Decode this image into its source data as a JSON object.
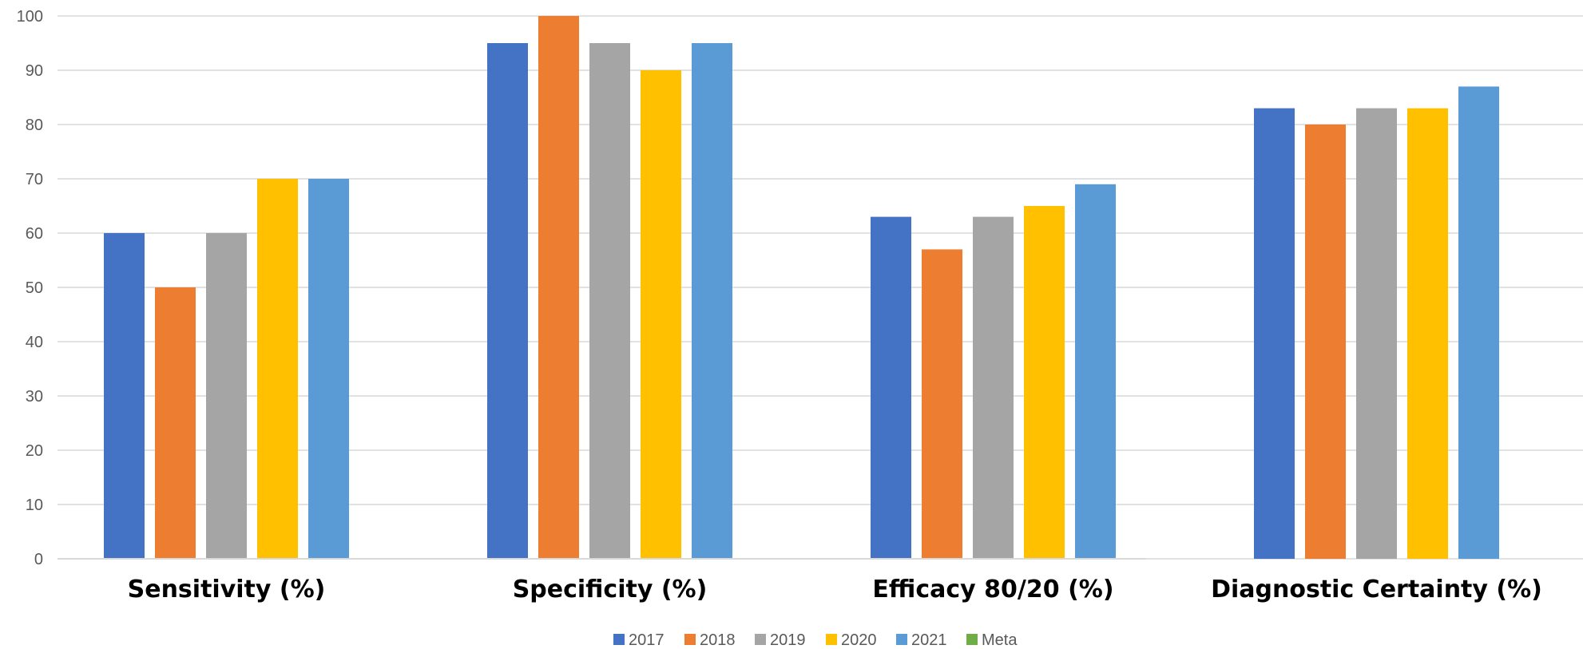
{
  "chart_data": {
    "type": "bar",
    "title": "",
    "xlabel": "",
    "ylabel": "",
    "categories": [
      "Sensitivity (%)",
      "Specificity (%)",
      "Efficacy 80/20 (%)",
      "Diagnostic Certainty (%)"
    ],
    "ylim": [
      0,
      100
    ],
    "yticks": [
      0,
      10,
      20,
      30,
      40,
      50,
      60,
      70,
      80,
      90,
      100
    ],
    "grid": true,
    "legend_position": "bottom",
    "series": [
      {
        "name": "2017",
        "color": "#4472C4",
        "values": [
          60,
          95,
          63,
          83
        ]
      },
      {
        "name": "2018",
        "color": "#ED7D31",
        "values": [
          50,
          100,
          57,
          80
        ]
      },
      {
        "name": "2019",
        "color": "#A5A5A5",
        "values": [
          60,
          95,
          63,
          83
        ]
      },
      {
        "name": "2020",
        "color": "#FFC000",
        "values": [
          70,
          90,
          65,
          83
        ]
      },
      {
        "name": "2021",
        "color": "#5B9BD5",
        "values": [
          70,
          95,
          69,
          87
        ]
      },
      {
        "name": "Meta",
        "color": "#70AD47",
        "values": [
          null,
          null,
          null,
          null
        ]
      }
    ]
  }
}
